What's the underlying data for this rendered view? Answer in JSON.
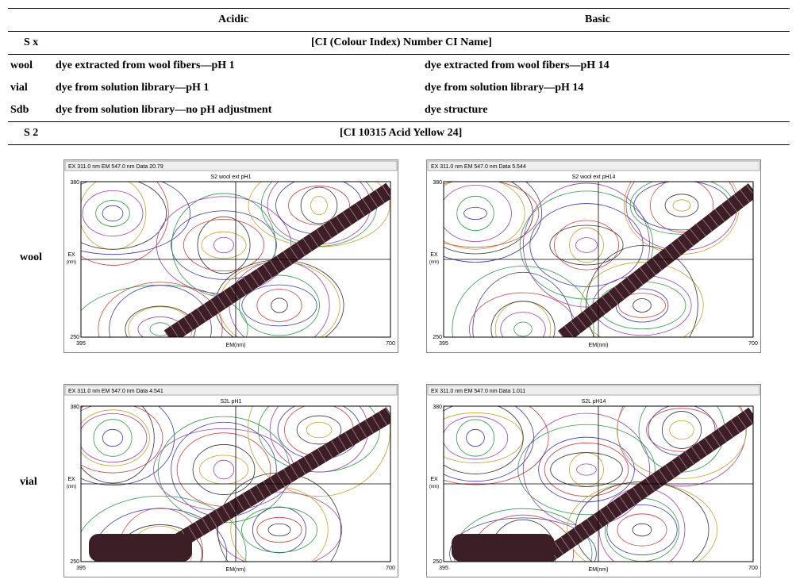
{
  "table": {
    "header": {
      "acidic": "Acidic",
      "basic": "Basic"
    },
    "index_row": {
      "label": "S x",
      "text": "[CI (Colour Index) Number CI Name]"
    },
    "rows": [
      [
        "wool",
        "dye extracted from wool fibers—pH 1",
        "dye extracted from wool fibers—pH 14"
      ],
      [
        "vial",
        "dye from solution library—pH 1",
        "dye from solution library—pH 14"
      ],
      [
        "Sdb",
        "dye from solution library—no pH adjustment",
        "dye structure"
      ]
    ],
    "sample_row": {
      "label": "S 2",
      "text": "[CI 10315 Acid Yellow 24]"
    }
  },
  "plot_axes": {
    "ex_max": "380",
    "ex_min": "250",
    "em_min": "395",
    "em_max": "700",
    "em_label": "EM(nm)",
    "ex_label": "EX",
    "ex_unit": "(nm)"
  },
  "plot_rows": [
    {
      "label": "wool",
      "panels": [
        {
          "info": "EX 311.0 nm  EM 547.0 nm  Data 20.79",
          "title": "S2 wool ext pH1"
        },
        {
          "info": "EX 311.0 nm  EM 547.0 nm  Data 5.544",
          "title": "S2 wool ext pH14"
        }
      ]
    },
    {
      "label": "vial",
      "panels": [
        {
          "info": "EX 311.0 nm  EM 547.0 nm  Data 4.541",
          "title": "S2L pH1"
        },
        {
          "info": "EX 311.0 nm  EM 547.0 nm  Data 1.011",
          "title": "S2L pH14"
        }
      ]
    }
  ]
}
